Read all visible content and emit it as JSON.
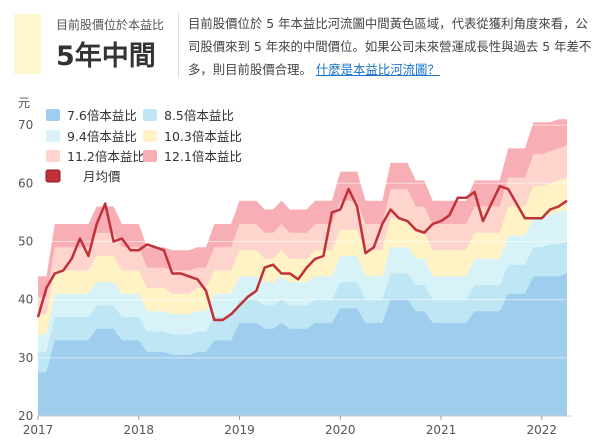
{
  "summary": {
    "label": "目前股價位於本益比",
    "value": "5年中間",
    "description": "目前股價位於 5 年本益比河流圖中間黃色區域，代表從獲利角度來看，公司股價來到 5 年來的中間價位。如果公司未來營運成長性與過去 5 年差不多，則目前股價合理。",
    "link_text": "什麼是本益比河流圖？"
  },
  "chart_data": {
    "type": "area",
    "title": "",
    "ylabel_unit": "元",
    "ylim": [
      20,
      75
    ],
    "yticks": [
      20,
      30,
      40,
      50,
      60,
      70
    ],
    "xlim": [
      2017,
      2022.3
    ],
    "xticks": [
      2017,
      2018,
      2019,
      2020,
      2021,
      2022
    ],
    "legend_position": "top-left",
    "x": [
      2017.0,
      2017.083,
      2017.167,
      2017.25,
      2017.333,
      2017.417,
      2017.5,
      2017.583,
      2017.667,
      2017.75,
      2017.833,
      2017.917,
      2018.0,
      2018.083,
      2018.167,
      2018.25,
      2018.333,
      2018.417,
      2018.5,
      2018.583,
      2018.667,
      2018.75,
      2018.833,
      2018.917,
      2019.0,
      2019.083,
      2019.167,
      2019.25,
      2019.333,
      2019.417,
      2019.5,
      2019.583,
      2019.667,
      2019.75,
      2019.833,
      2019.917,
      2020.0,
      2020.083,
      2020.167,
      2020.25,
      2020.333,
      2020.417,
      2020.5,
      2020.583,
      2020.667,
      2020.75,
      2020.833,
      2020.917,
      2021.0,
      2021.083,
      2021.167,
      2021.25,
      2021.333,
      2021.417,
      2021.5,
      2021.583,
      2021.667,
      2021.75,
      2021.833,
      2021.917,
      2022.0,
      2022.083,
      2022.167,
      2022.25
    ],
    "series": [
      {
        "name": "7.6倍本益比",
        "color": "#9fcdee",
        "values": [
          27.5,
          27.5,
          33.0,
          33.0,
          33.0,
          33.0,
          33.0,
          35.0,
          35.0,
          35.0,
          33.0,
          33.0,
          33.0,
          31.0,
          31.0,
          31.0,
          30.5,
          30.5,
          30.5,
          31.0,
          31.0,
          33.0,
          33.0,
          33.0,
          36.0,
          36.0,
          36.0,
          35.0,
          35.0,
          36.0,
          35.0,
          35.0,
          35.0,
          36.0,
          36.0,
          36.0,
          38.5,
          38.5,
          38.5,
          36.0,
          36.0,
          36.0,
          40.0,
          40.0,
          40.0,
          38.0,
          38.0,
          36.0,
          36.0,
          36.0,
          36.0,
          36.0,
          38.0,
          38.0,
          38.0,
          38.0,
          41.0,
          41.0,
          41.0,
          44.0,
          44.0,
          44.0,
          44.0,
          44.5
        ]
      },
      {
        "name": "8.5倍本益比",
        "color": "#bfe6f4",
        "values": [
          31.0,
          31.0,
          37.0,
          37.0,
          37.0,
          37.0,
          37.0,
          39.0,
          39.0,
          39.0,
          37.0,
          37.0,
          37.0,
          34.5,
          34.5,
          34.5,
          34.0,
          34.0,
          34.0,
          34.5,
          34.5,
          37.0,
          37.0,
          37.0,
          40.0,
          40.0,
          40.0,
          39.0,
          39.0,
          40.0,
          39.0,
          39.0,
          39.0,
          40.0,
          40.0,
          40.0,
          43.0,
          43.0,
          43.0,
          40.0,
          40.0,
          40.0,
          44.5,
          44.5,
          44.5,
          42.5,
          42.5,
          40.0,
          40.0,
          40.0,
          40.0,
          40.0,
          42.5,
          42.5,
          42.5,
          42.5,
          46.0,
          46.0,
          46.0,
          49.0,
          49.0,
          49.5,
          49.5,
          50.0
        ]
      },
      {
        "name": "9.4倍本益比",
        "color": "#d8f3f8",
        "values": [
          34.0,
          34.0,
          41.0,
          41.0,
          41.0,
          41.0,
          41.0,
          43.0,
          43.0,
          43.0,
          41.0,
          41.0,
          41.0,
          38.0,
          38.0,
          38.0,
          37.5,
          37.5,
          37.5,
          38.0,
          38.0,
          41.0,
          41.0,
          41.0,
          44.0,
          44.0,
          44.0,
          43.0,
          43.0,
          44.0,
          43.0,
          43.0,
          43.0,
          44.0,
          44.0,
          44.0,
          47.5,
          47.5,
          47.5,
          44.0,
          44.0,
          44.0,
          49.0,
          49.0,
          49.0,
          47.0,
          47.0,
          44.0,
          44.0,
          44.0,
          44.0,
          44.0,
          47.0,
          47.0,
          47.0,
          47.0,
          51.0,
          51.0,
          51.0,
          54.0,
          54.0,
          54.5,
          55.0,
          55.5
        ]
      },
      {
        "name": "10.3倍本益比",
        "color": "#fff3c6",
        "values": [
          37.5,
          37.5,
          45.0,
          45.0,
          45.0,
          45.0,
          45.0,
          47.5,
          47.5,
          47.5,
          45.0,
          45.0,
          45.0,
          42.0,
          42.0,
          42.0,
          41.0,
          41.0,
          41.0,
          42.0,
          42.0,
          45.0,
          45.0,
          45.0,
          48.5,
          48.5,
          48.5,
          47.0,
          47.0,
          48.5,
          47.0,
          47.0,
          47.0,
          48.5,
          48.5,
          48.5,
          52.0,
          52.0,
          52.0,
          48.5,
          48.5,
          48.5,
          54.0,
          54.0,
          54.0,
          51.5,
          51.5,
          48.5,
          48.5,
          48.5,
          48.5,
          48.5,
          51.5,
          51.5,
          51.5,
          51.5,
          56.0,
          56.0,
          56.0,
          59.5,
          59.5,
          60.0,
          60.5,
          61.0
        ]
      },
      {
        "name": "11.2倍本益比",
        "color": "#fdd5cd",
        "values": [
          40.5,
          40.5,
          49.0,
          49.0,
          49.0,
          49.0,
          49.0,
          51.5,
          51.5,
          51.5,
          49.0,
          49.0,
          49.0,
          45.5,
          45.5,
          45.5,
          45.0,
          45.0,
          45.0,
          45.5,
          45.5,
          49.0,
          49.0,
          49.0,
          53.0,
          53.0,
          53.0,
          51.5,
          51.5,
          53.0,
          51.5,
          51.5,
          51.5,
          53.0,
          53.0,
          53.0,
          57.0,
          57.0,
          57.0,
          53.0,
          53.0,
          53.0,
          59.0,
          59.0,
          59.0,
          56.0,
          56.0,
          53.0,
          53.0,
          53.0,
          53.0,
          53.0,
          56.0,
          56.0,
          56.0,
          56.0,
          61.0,
          61.0,
          61.0,
          65.0,
          65.0,
          65.5,
          66.0,
          66.5
        ]
      },
      {
        "name": "12.1倍本益比",
        "color": "#f7aeb5",
        "values": [
          44.0,
          44.0,
          53.0,
          53.0,
          53.0,
          53.0,
          53.0,
          56.0,
          56.0,
          56.0,
          53.0,
          53.0,
          53.0,
          49.0,
          49.0,
          49.0,
          48.5,
          48.5,
          48.5,
          49.0,
          49.0,
          53.0,
          53.0,
          53.0,
          57.0,
          57.0,
          57.0,
          55.5,
          55.5,
          57.0,
          55.5,
          55.5,
          55.5,
          57.0,
          57.0,
          57.0,
          62.0,
          62.0,
          62.0,
          57.0,
          57.0,
          57.0,
          63.5,
          63.5,
          63.5,
          60.5,
          60.5,
          57.0,
          57.0,
          57.0,
          57.0,
          57.0,
          60.5,
          60.5,
          60.5,
          60.5,
          66.0,
          66.0,
          66.0,
          70.5,
          70.5,
          70.5,
          71.0,
          71.0
        ]
      },
      {
        "name": "月均價",
        "color": "#c0313a",
        "values": [
          37.0,
          42.0,
          44.5,
          45.0,
          47.0,
          50.5,
          47.5,
          53.0,
          56.5,
          50.0,
          50.5,
          48.5,
          48.5,
          49.5,
          49.0,
          48.5,
          44.5,
          44.5,
          44.0,
          43.5,
          41.5,
          36.5,
          36.5,
          37.5,
          39.0,
          40.5,
          41.5,
          45.5,
          46.0,
          44.5,
          44.5,
          43.5,
          45.5,
          47.0,
          47.5,
          55.0,
          55.5,
          59.0,
          56.0,
          48.0,
          49.0,
          53.0,
          55.5,
          54.0,
          53.5,
          52.0,
          51.5,
          53.0,
          53.5,
          54.5,
          57.5,
          57.5,
          58.5,
          53.5,
          56.5,
          59.5,
          59.0,
          56.5,
          54.0,
          54.0,
          54.0,
          55.5,
          56.0,
          57.0
        ]
      }
    ]
  }
}
